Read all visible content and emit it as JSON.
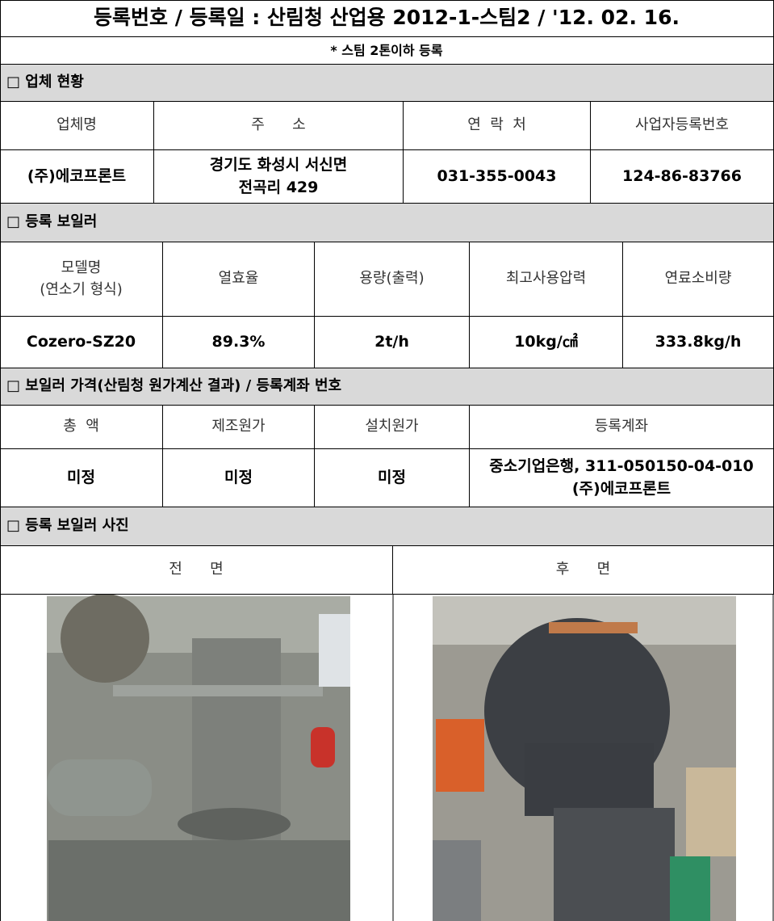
{
  "header": {
    "title": "등록번호 / 등록일 : 산림청 산업용 2012-1-스팀2 / '12. 02. 16.",
    "subtitle": "* 스팀 2톤이하 등록"
  },
  "sections": [
    {
      "title": "□ 업체 현황",
      "columns": [
        "업체명",
        "주      소",
        "연  락  처",
        "사업자등록번호"
      ],
      "rows": [
        [
          "(주)에코프론트",
          "경기도 화성시 서신면\n전곡리 429",
          "031-355-0043",
          "124-86-83766"
        ]
      ]
    },
    {
      "title": "□ 등록 보일러",
      "columns": [
        "모델명\n(연소기 형식)",
        "열효율",
        "용량(출력)",
        "최고사용압력",
        "연료소비량"
      ],
      "rows": [
        [
          "Cozero-SZ20",
          "89.3%",
          "2t/h",
          "10kg/㎠",
          "333.8kg/h"
        ]
      ]
    },
    {
      "title": "□ 보일러 가격(산림청 원가계산 결과) / 등록계좌 번호",
      "columns": [
        "총  액",
        "제조원가",
        "설치원가",
        "등록계좌"
      ],
      "rows": [
        [
          "미정",
          "미정",
          "미정",
          "중소기업은행, 311-050150-04-010\n(주)에코프론트"
        ]
      ]
    },
    {
      "title": "□ 등록 보일러 사진",
      "columns": [
        "전      면",
        "후      면"
      ],
      "rows": []
    }
  ]
}
